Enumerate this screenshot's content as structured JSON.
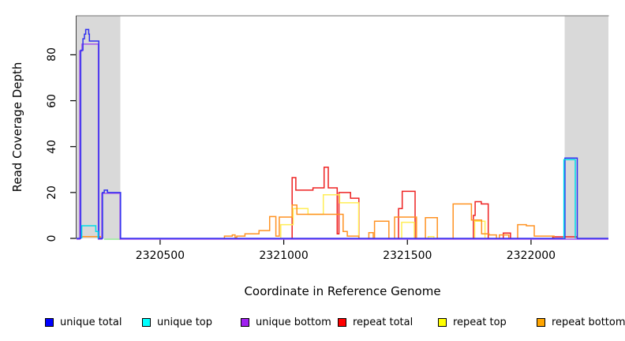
{
  "chart_data": {
    "type": "line",
    "title": "",
    "xlabel": "Coordinate in Reference Genome",
    "ylabel": "Read Coverage Depth",
    "xlim": [
      2320162,
      2322313
    ],
    "ylim": [
      0,
      97
    ],
    "x_ticks": [
      2320500,
      2321000,
      2321500,
      2322000
    ],
    "y_ticks": [
      0,
      20,
      40,
      60,
      80
    ],
    "grid": false,
    "legend_position": "bottom",
    "masked_region_color": "#d9d9d9",
    "masked_regions": [
      [
        2320162,
        2320339
      ],
      [
        2322136,
        2322313
      ]
    ],
    "series": [
      {
        "name": "repeat total",
        "color": "#ee2222",
        "dy": 0,
        "paths": [
          [
            [
              2321034,
              0
            ],
            [
              2321034,
              26.5
            ],
            [
              2321049,
              26.5
            ],
            [
              2321049,
              21
            ],
            [
              2321118,
              21
            ],
            [
              2321118,
              22
            ],
            [
              2321163,
              22
            ],
            [
              2321163,
              31
            ],
            [
              2321180,
              31
            ],
            [
              2321180,
              22
            ],
            [
              2321216,
              22
            ],
            [
              2321216,
              2
            ],
            [
              2321223,
              2
            ],
            [
              2321223,
              20
            ],
            [
              2321270,
              20
            ],
            [
              2321270,
              17.5
            ],
            [
              2321304,
              17.5
            ],
            [
              2321304,
              0
            ]
          ],
          [
            [
              2321464,
              0
            ],
            [
              2321464,
              13
            ],
            [
              2321479,
              13
            ],
            [
              2321479,
              20.5
            ],
            [
              2321531,
              20.5
            ],
            [
              2321531,
              0
            ]
          ],
          [
            [
              2321767,
              0
            ],
            [
              2321767,
              10
            ],
            [
              2321774,
              10
            ],
            [
              2321774,
              16
            ],
            [
              2321799,
              16
            ],
            [
              2321799,
              15
            ],
            [
              2321827,
              15
            ],
            [
              2321827,
              0
            ]
          ],
          [
            [
              2321888,
              0
            ],
            [
              2321888,
              2.3
            ],
            [
              2321917,
              2.3
            ],
            [
              2321917,
              0
            ]
          ],
          [
            [
              2322088,
              0
            ],
            [
              2322088,
              0.7
            ],
            [
              2322186,
              0.7
            ],
            [
              2322186,
              0
            ]
          ]
        ]
      },
      {
        "name": "repeat top",
        "color": "#ffee55",
        "dy": 0,
        "paths": [
          [
            [
              2320988,
              0
            ],
            [
              2320988,
              6
            ],
            [
              2321038,
              6
            ],
            [
              2321038,
              13
            ],
            [
              2321098,
              13
            ],
            [
              2321098,
              10.5
            ],
            [
              2321160,
              10.5
            ],
            [
              2321160,
              19
            ],
            [
              2321226,
              19
            ],
            [
              2321226,
              15.5
            ],
            [
              2321303,
              15.5
            ],
            [
              2321303,
              0
            ]
          ],
          [
            [
              2321477,
              0
            ],
            [
              2321477,
              7
            ],
            [
              2321528,
              7
            ],
            [
              2321528,
              0
            ]
          ],
          [
            [
              2321584,
              0
            ],
            [
              2321584,
              0.8
            ],
            [
              2321607,
              0.8
            ],
            [
              2321607,
              0
            ]
          ],
          [
            [
              2321772,
              0
            ],
            [
              2321772,
              7.5
            ],
            [
              2321814,
              7.5
            ],
            [
              2321814,
              0
            ]
          ]
        ]
      },
      {
        "name": "repeat bottom",
        "color": "#ff9222",
        "dy": 0,
        "paths": [
          [
            [
              2320180,
              0
            ],
            [
              2320180,
              0.8
            ],
            [
              2320258,
              0.8
            ],
            [
              2320258,
              0
            ]
          ],
          [
            [
              2320760,
              0
            ],
            [
              2320760,
              1
            ],
            [
              2320792,
              1
            ],
            [
              2320792,
              1.5
            ],
            [
              2320803,
              1.5
            ],
            [
              2320803,
              0.3
            ],
            [
              2320810,
              0.3
            ],
            [
              2320810,
              1
            ],
            [
              2320843,
              1
            ],
            [
              2320843,
              2
            ],
            [
              2320900,
              2
            ],
            [
              2320900,
              3.4
            ],
            [
              2320943,
              3.4
            ],
            [
              2320943,
              9.5
            ],
            [
              2320968,
              9.5
            ],
            [
              2320968,
              1
            ],
            [
              2320982,
              1
            ],
            [
              2320982,
              9.3
            ],
            [
              2321034,
              9.3
            ],
            [
              2321034,
              14.5
            ],
            [
              2321053,
              14.5
            ],
            [
              2321053,
              10.5
            ],
            [
              2321240,
              10.5
            ],
            [
              2321240,
              3
            ],
            [
              2321257,
              3
            ],
            [
              2321257,
              1
            ],
            [
              2321304,
              1
            ],
            [
              2321304,
              0
            ]
          ],
          [
            [
              2321344,
              0
            ],
            [
              2321344,
              2.5
            ],
            [
              2321362,
              2.5
            ],
            [
              2321362,
              0
            ]
          ],
          [
            [
              2321367,
              0
            ],
            [
              2321367,
              7.5
            ],
            [
              2321425,
              7.5
            ],
            [
              2321425,
              0
            ]
          ],
          [
            [
              2321448,
              0
            ],
            [
              2321448,
              9.3
            ],
            [
              2321537,
              9.3
            ],
            [
              2321537,
              0
            ]
          ],
          [
            [
              2321573,
              0
            ],
            [
              2321573,
              9
            ],
            [
              2321621,
              9
            ],
            [
              2321621,
              0
            ]
          ],
          [
            [
              2321685,
              0
            ],
            [
              2321685,
              15
            ],
            [
              2321759,
              15
            ],
            [
              2321759,
              8
            ],
            [
              2321800,
              8
            ],
            [
              2321800,
              2
            ],
            [
              2321830,
              2
            ],
            [
              2321830,
              1.5
            ],
            [
              2321860,
              1.5
            ],
            [
              2321860,
              0
            ]
          ],
          [
            [
              2321872,
              0
            ],
            [
              2321872,
              1.5
            ],
            [
              2321910,
              1.5
            ],
            [
              2321910,
              0
            ]
          ],
          [
            [
              2321946,
              0
            ],
            [
              2321946,
              6
            ],
            [
              2321981,
              6
            ],
            [
              2321981,
              5.5
            ],
            [
              2322013,
              5.5
            ],
            [
              2322013,
              1
            ],
            [
              2322093,
              1
            ],
            [
              2322093,
              0
            ]
          ]
        ]
      },
      {
        "name": "green baseline segment",
        "color": "#8ee08e",
        "dy": 1,
        "paths": [
          [
            [
              2320273,
              0
            ],
            [
              2320341,
              0
            ]
          ]
        ]
      },
      {
        "name": "unique bottom",
        "color": "#a455ec",
        "dy": 1,
        "paths": [
          [
            [
              2320162,
              0
            ],
            [
              2320175,
              0
            ],
            [
              2320175,
              82
            ],
            [
              2320184,
              82
            ],
            [
              2320184,
              85
            ],
            [
              2320250,
              85
            ],
            [
              2320250,
              0
            ],
            [
              2320264,
              0
            ],
            [
              2320264,
              20
            ],
            [
              2320338,
              20
            ],
            [
              2320338,
              0
            ],
            [
              2322313,
              0
            ]
          ]
        ]
      },
      {
        "name": "unique total",
        "color": "#3030f0",
        "dy": 0,
        "paths": [
          [
            [
              2320162,
              0
            ],
            [
              2320179,
              0
            ],
            [
              2320179,
              82
            ],
            [
              2320188,
              82
            ],
            [
              2320188,
              87
            ],
            [
              2320194,
              87
            ],
            [
              2320194,
              89
            ],
            [
              2320199,
              89
            ],
            [
              2320199,
              91
            ],
            [
              2320211,
              91
            ],
            [
              2320211,
              89
            ],
            [
              2320214,
              89
            ],
            [
              2320214,
              86
            ],
            [
              2320252,
              86
            ],
            [
              2320252,
              0
            ],
            [
              2320267,
              0
            ],
            [
              2320267,
              20
            ],
            [
              2320274,
              20
            ],
            [
              2320274,
              21
            ],
            [
              2320287,
              21
            ],
            [
              2320287,
              20
            ],
            [
              2320340,
              20
            ],
            [
              2320340,
              0
            ],
            [
              2322137,
              0
            ],
            [
              2322137,
              35
            ],
            [
              2322187,
              35
            ],
            [
              2322187,
              0
            ],
            [
              2322313,
              0
            ]
          ]
        ]
      },
      {
        "name": "unique top",
        "color": "#00dce8",
        "dy": 0,
        "paths": [
          [
            [
              2320183,
              0
            ],
            [
              2320183,
              5.5
            ],
            [
              2320240,
              5.5
            ],
            [
              2320240,
              3
            ],
            [
              2320249,
              3
            ],
            [
              2320249,
              0
            ]
          ],
          [
            [
              2322133,
              0
            ],
            [
              2322133,
              34.3
            ],
            [
              2322179,
              34.3
            ],
            [
              2322179,
              0
            ]
          ]
        ]
      }
    ]
  },
  "legend": {
    "items": [
      {
        "label": "unique total",
        "color": "#0000ff"
      },
      {
        "label": "unique top",
        "color": "#00ffff"
      },
      {
        "label": "unique bottom",
        "color": "#a020f0"
      },
      {
        "label": "repeat total",
        "color": "#ff0000"
      },
      {
        "label": "repeat top",
        "color": "#ffff00"
      },
      {
        "label": "repeat bottom",
        "color": "#ffa500"
      }
    ]
  }
}
